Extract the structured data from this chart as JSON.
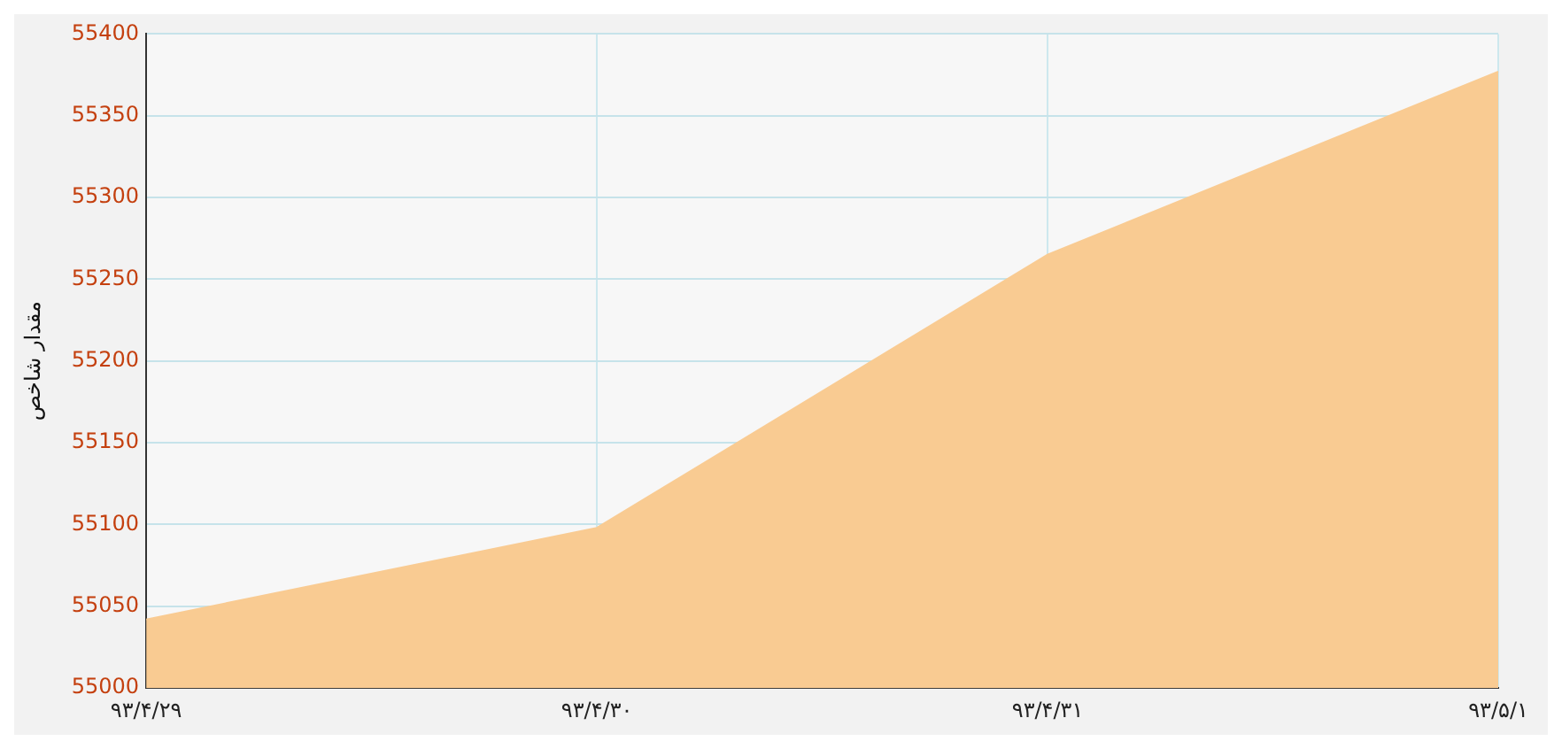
{
  "chart_data": {
    "type": "area",
    "ylabel": "مقدار شاخص",
    "categories": [
      "۹۳/۴/۲۹",
      "۹۳/۴/۳۰",
      "۹۳/۴/۳۱",
      "۹۳/۵/۱"
    ],
    "series": [
      {
        "color": "#f9cb92",
        "values": [
          55042,
          55098,
          55265,
          55377
        ]
      }
    ],
    "ylim": [
      55000,
      55400
    ],
    "yticks": [
      55000,
      55050,
      55100,
      55150,
      55200,
      55250,
      55300,
      55350,
      55400
    ],
    "grid": true,
    "legend": false
  }
}
